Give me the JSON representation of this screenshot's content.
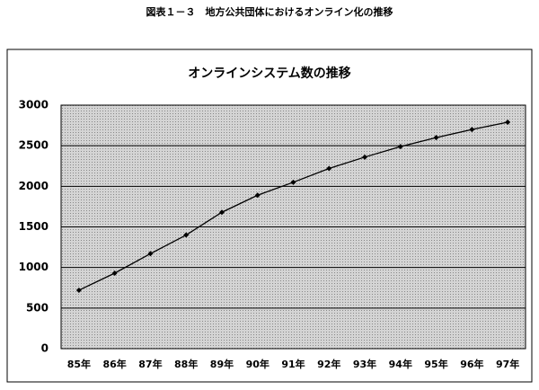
{
  "chart_data": {
    "type": "line",
    "caption": "図表１－３　地方公共団体におけるオンライン化の推移",
    "title": "オンラインシステム数の推移",
    "categories": [
      "85年",
      "86年",
      "87年",
      "88年",
      "89年",
      "90年",
      "91年",
      "92年",
      "93年",
      "94年",
      "95年",
      "96年",
      "97年"
    ],
    "values": [
      720,
      930,
      1170,
      1400,
      1680,
      1890,
      2050,
      2220,
      2360,
      2490,
      2600,
      2700,
      2790
    ],
    "color": "#000000",
    "ylim": [
      0,
      3000
    ],
    "yticks": [
      0,
      500,
      1000,
      1500,
      2000,
      2500,
      3000
    ],
    "grid": true
  }
}
